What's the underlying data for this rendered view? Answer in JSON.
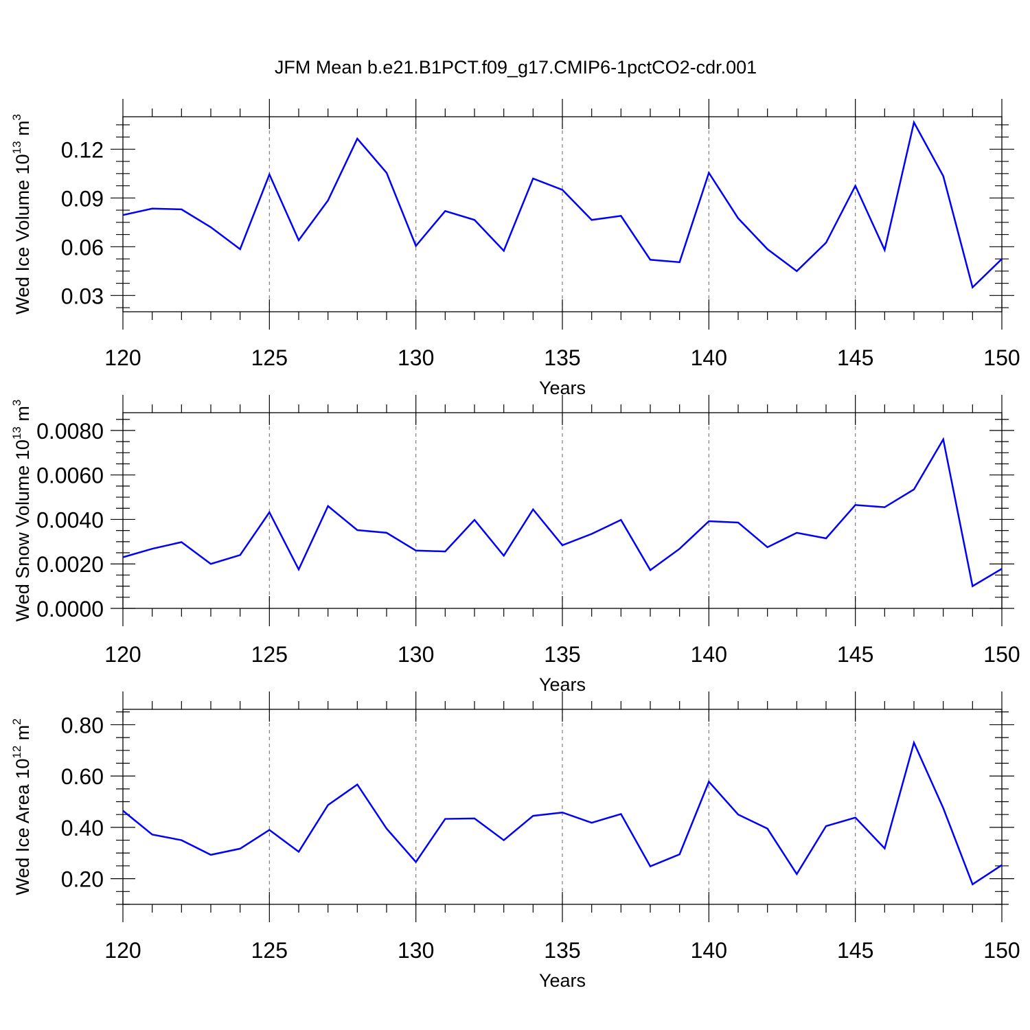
{
  "colors": {
    "series": "#0000ff",
    "axes": "#000000",
    "grid": "#808080"
  },
  "chart_data": {
    "title": "JFM Mean b.e21.B1PCT.f09_g17.CMIP6-1pctCO2-cdr.001",
    "panels": [
      {
        "type": "line",
        "ylabel": "Wed Ice Volume 10",
        "ylabel_exp": "13",
        "ylabel_unit": " m",
        "ylabel_unit_exp": "3",
        "xlabel": "Years",
        "xlim": [
          120,
          150
        ],
        "ylim": [
          0.02,
          0.14
        ],
        "grid": "vertical dashed at major x ticks",
        "x_ticks": [
          120,
          125,
          130,
          135,
          140,
          145,
          150
        ],
        "x_tick_labels": [
          "120",
          "125",
          "130",
          "135",
          "140",
          "145",
          "150"
        ],
        "y_ticks": [
          0.03,
          0.06,
          0.09,
          0.12
        ],
        "y_tick_labels": [
          "0.03",
          "0.06",
          "0.09",
          "0.12"
        ],
        "x": [
          120,
          121,
          122,
          123,
          124,
          125,
          126,
          127,
          128,
          129,
          130,
          131,
          132,
          133,
          134,
          135,
          136,
          137,
          138,
          139,
          140,
          141,
          142,
          143,
          144,
          145,
          146,
          147,
          148,
          149,
          150
        ],
        "values": [
          0.0795,
          0.0835,
          0.083,
          0.072,
          0.0585,
          0.1045,
          0.064,
          0.0885,
          0.1265,
          0.1055,
          0.0605,
          0.082,
          0.0765,
          0.0575,
          0.102,
          0.095,
          0.0765,
          0.079,
          0.052,
          0.0505,
          0.1055,
          0.0775,
          0.0585,
          0.045,
          0.0625,
          0.0975,
          0.058,
          0.1365,
          0.1035,
          0.035,
          0.0525
        ]
      },
      {
        "type": "line",
        "ylabel": "Wed Snow Volume 10",
        "ylabel_exp": "13",
        "ylabel_unit": " m",
        "ylabel_unit_exp": "3",
        "xlabel": "Years",
        "xlim": [
          120,
          150
        ],
        "ylim": [
          0.0,
          0.0088
        ],
        "grid": "vertical dashed at major x ticks",
        "x_ticks": [
          120,
          125,
          130,
          135,
          140,
          145,
          150
        ],
        "x_tick_labels": [
          "120",
          "125",
          "130",
          "135",
          "140",
          "145",
          "150"
        ],
        "y_ticks": [
          0.0,
          0.002,
          0.004,
          0.006,
          0.008
        ],
        "y_tick_labels": [
          "0.0000",
          "0.0020",
          "0.0040",
          "0.0060",
          "0.0080"
        ],
        "x": [
          120,
          121,
          122,
          123,
          124,
          125,
          126,
          127,
          128,
          129,
          130,
          131,
          132,
          133,
          134,
          135,
          136,
          137,
          138,
          139,
          140,
          141,
          142,
          143,
          144,
          145,
          146,
          147,
          148,
          149,
          150
        ],
        "values": [
          0.0023,
          0.00268,
          0.00298,
          0.002,
          0.0024,
          0.00432,
          0.00175,
          0.0046,
          0.00352,
          0.0034,
          0.0026,
          0.00256,
          0.00398,
          0.00237,
          0.00445,
          0.00284,
          0.00335,
          0.00398,
          0.00172,
          0.00268,
          0.00392,
          0.00386,
          0.00275,
          0.0034,
          0.00315,
          0.00465,
          0.00455,
          0.00535,
          0.0076,
          0.001,
          0.00178
        ]
      },
      {
        "type": "line",
        "ylabel": "Wed Ice Area 10",
        "ylabel_exp": "12",
        "ylabel_unit": " m",
        "ylabel_unit_exp": "2",
        "xlabel": "Years",
        "xlim": [
          120,
          150
        ],
        "ylim": [
          0.1,
          0.86
        ],
        "grid": "vertical dashed at major x ticks",
        "x_ticks": [
          120,
          125,
          130,
          135,
          140,
          145,
          150
        ],
        "x_tick_labels": [
          "120",
          "125",
          "130",
          "135",
          "140",
          "145",
          "150"
        ],
        "y_ticks": [
          0.2,
          0.4,
          0.6,
          0.8
        ],
        "y_tick_labels": [
          "0.20",
          "0.40",
          "0.60",
          "0.80"
        ],
        "x": [
          120,
          121,
          122,
          123,
          124,
          125,
          126,
          127,
          128,
          129,
          130,
          131,
          132,
          133,
          134,
          135,
          136,
          137,
          138,
          139,
          140,
          141,
          142,
          143,
          144,
          145,
          146,
          147,
          148,
          149,
          150
        ],
        "values": [
          0.465,
          0.372,
          0.35,
          0.293,
          0.317,
          0.39,
          0.305,
          0.487,
          0.567,
          0.395,
          0.265,
          0.433,
          0.435,
          0.35,
          0.445,
          0.458,
          0.418,
          0.452,
          0.248,
          0.295,
          0.578,
          0.45,
          0.395,
          0.218,
          0.405,
          0.438,
          0.318,
          0.73,
          0.475,
          0.178,
          0.253
        ]
      }
    ]
  }
}
